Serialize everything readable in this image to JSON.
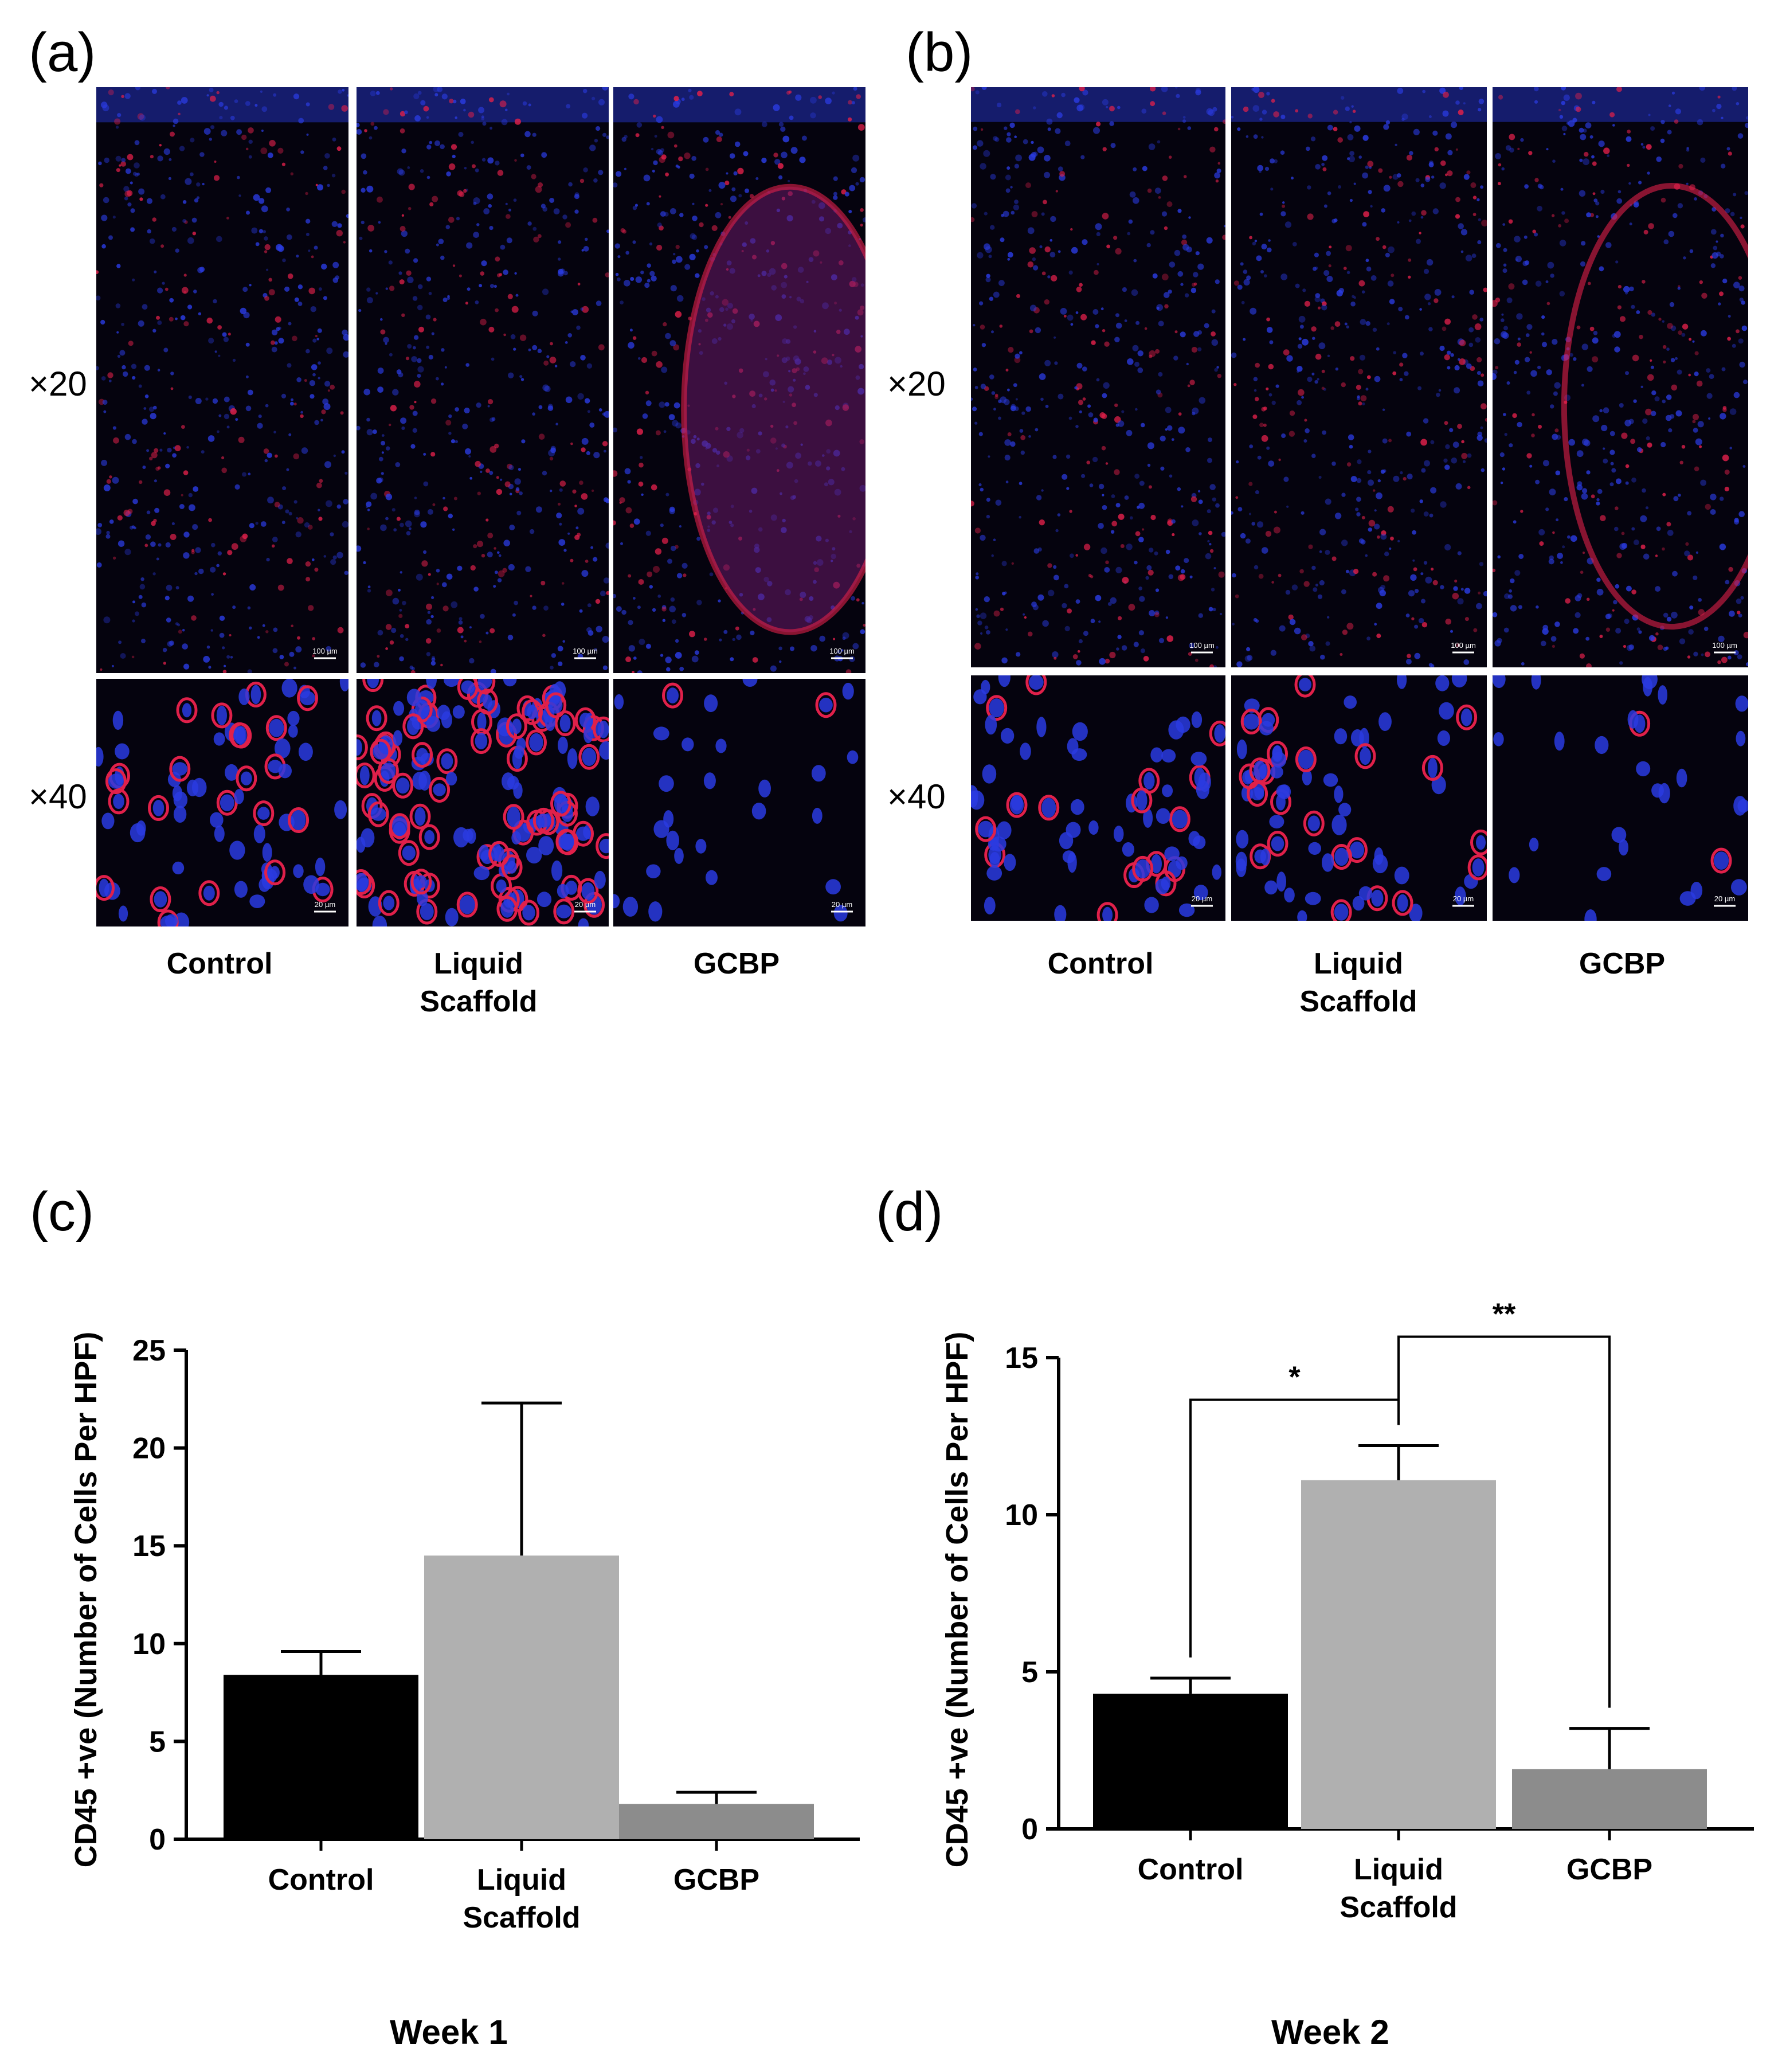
{
  "panels": {
    "a": "(a)",
    "b": "(b)",
    "c": "(c)",
    "d": "(d)"
  },
  "micrographs": {
    "magnifications": [
      "×20",
      "×40"
    ],
    "groups": [
      "Control",
      "Liquid\nScaffold",
      "GCBP"
    ],
    "scalebars": {
      "a": {
        "x20": [
          "100 µm",
          "100 µm",
          "100 µm"
        ],
        "x40": [
          "20 µm",
          "20 µm",
          "20 µm"
        ]
      },
      "b": {
        "x20": [
          "100 µm",
          "100 µm",
          "100 µm"
        ],
        "x40": [
          "20 µm",
          "20 µm",
          "20 µm"
        ]
      }
    },
    "colors": {
      "background": "#05030e",
      "nuclei": "#2a3be0",
      "cd45": "#e0204a",
      "divider": "#ffffff"
    }
  },
  "chart_data": [
    {
      "type": "bar",
      "panel": "(c)",
      "title": "Week 1",
      "xlabel": "",
      "ylabel": "CD45 +ve (Number of Cells Per HPF)",
      "categories": [
        "Control",
        "Liquid\nScaffold",
        "GCBP"
      ],
      "values": [
        8.4,
        14.5,
        1.8
      ],
      "errors": [
        1.2,
        7.8,
        0.6
      ],
      "colors": [
        "#000000",
        "#b0b0b0",
        "#8c8c8c"
      ],
      "ylim": [
        0,
        25
      ],
      "yticks": [
        "0",
        "5",
        "10",
        "15",
        "20",
        "25"
      ],
      "significance": []
    },
    {
      "type": "bar",
      "panel": "(d)",
      "title": "Week 2",
      "xlabel": "",
      "ylabel": "CD45 +ve (Number of Cells Per HPF)",
      "categories": [
        "Control",
        "Liquid\nScaffold",
        "GCBP"
      ],
      "values": [
        4.3,
        11.1,
        1.9
      ],
      "errors": [
        0.5,
        1.1,
        1.3
      ],
      "colors": [
        "#000000",
        "#b0b0b0",
        "#8c8c8c"
      ],
      "ylim": [
        0,
        15
      ],
      "yticks": [
        "0",
        "5",
        "10",
        "15"
      ],
      "significance": [
        {
          "from": 0,
          "to": 1,
          "label": "*"
        },
        {
          "from": 1,
          "to": 2,
          "label": "**"
        }
      ]
    }
  ]
}
